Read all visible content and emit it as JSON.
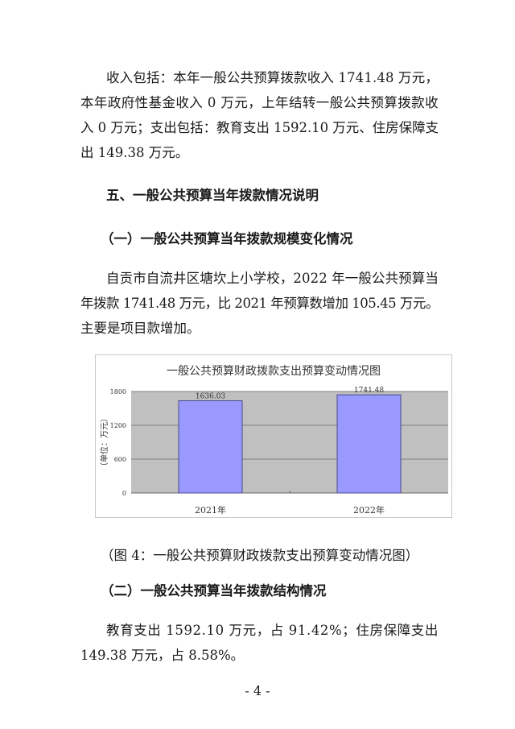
{
  "para1": {
    "lines": [
      "收入包括：本年一般公共预算拨款收入 1741.48 万元，",
      "本年政府性基金收入 0 万元，上年结转一般公共预算拨款收",
      "入 0 万元；支出包括：教育支出 1592.10 万元、住房保障支",
      "出 149.38 万元。"
    ]
  },
  "heading5": "五、一般公共预算当年拨款情况说明",
  "sub1": "（一）一般公共预算当年拨款规模变化情况",
  "para2": {
    "lines": [
      "自贡市自流井区塘坎上小学校，2022 年一般公共预算当",
      "年拨款 1741.48 万元，比 2021 年预算数增加 105.45 万元。",
      "主要是项目款增加。"
    ]
  },
  "chart_data": {
    "type": "bar",
    "title": "一般公共预算财政拨款支出预算变动情况图",
    "ylabel": "（单位：万元）",
    "xlabel": "",
    "categories": [
      "2021年",
      "2022年"
    ],
    "values": [
      1636.03,
      1741.48
    ],
    "data_labels": [
      "1636.03",
      "1741.48"
    ],
    "ylim": [
      0,
      1800
    ],
    "yticks": [
      "0",
      "600",
      "1200",
      "1800"
    ],
    "grid": true,
    "colors": {
      "bar": "#9999ff",
      "plot_bg": "#c0c0c0",
      "grid": "#808080"
    }
  },
  "caption": "（图 4：一般公共预算财政拨款支出预算变动情况图）",
  "sub2": "（二）一般公共预算当年拨款结构情况",
  "para3": {
    "lines": [
      "教育支出 1592.10 万元，占 91.42%；住房保障支出",
      "149.38 万元，占 8.58%。"
    ]
  },
  "page_number": "- 4 -"
}
